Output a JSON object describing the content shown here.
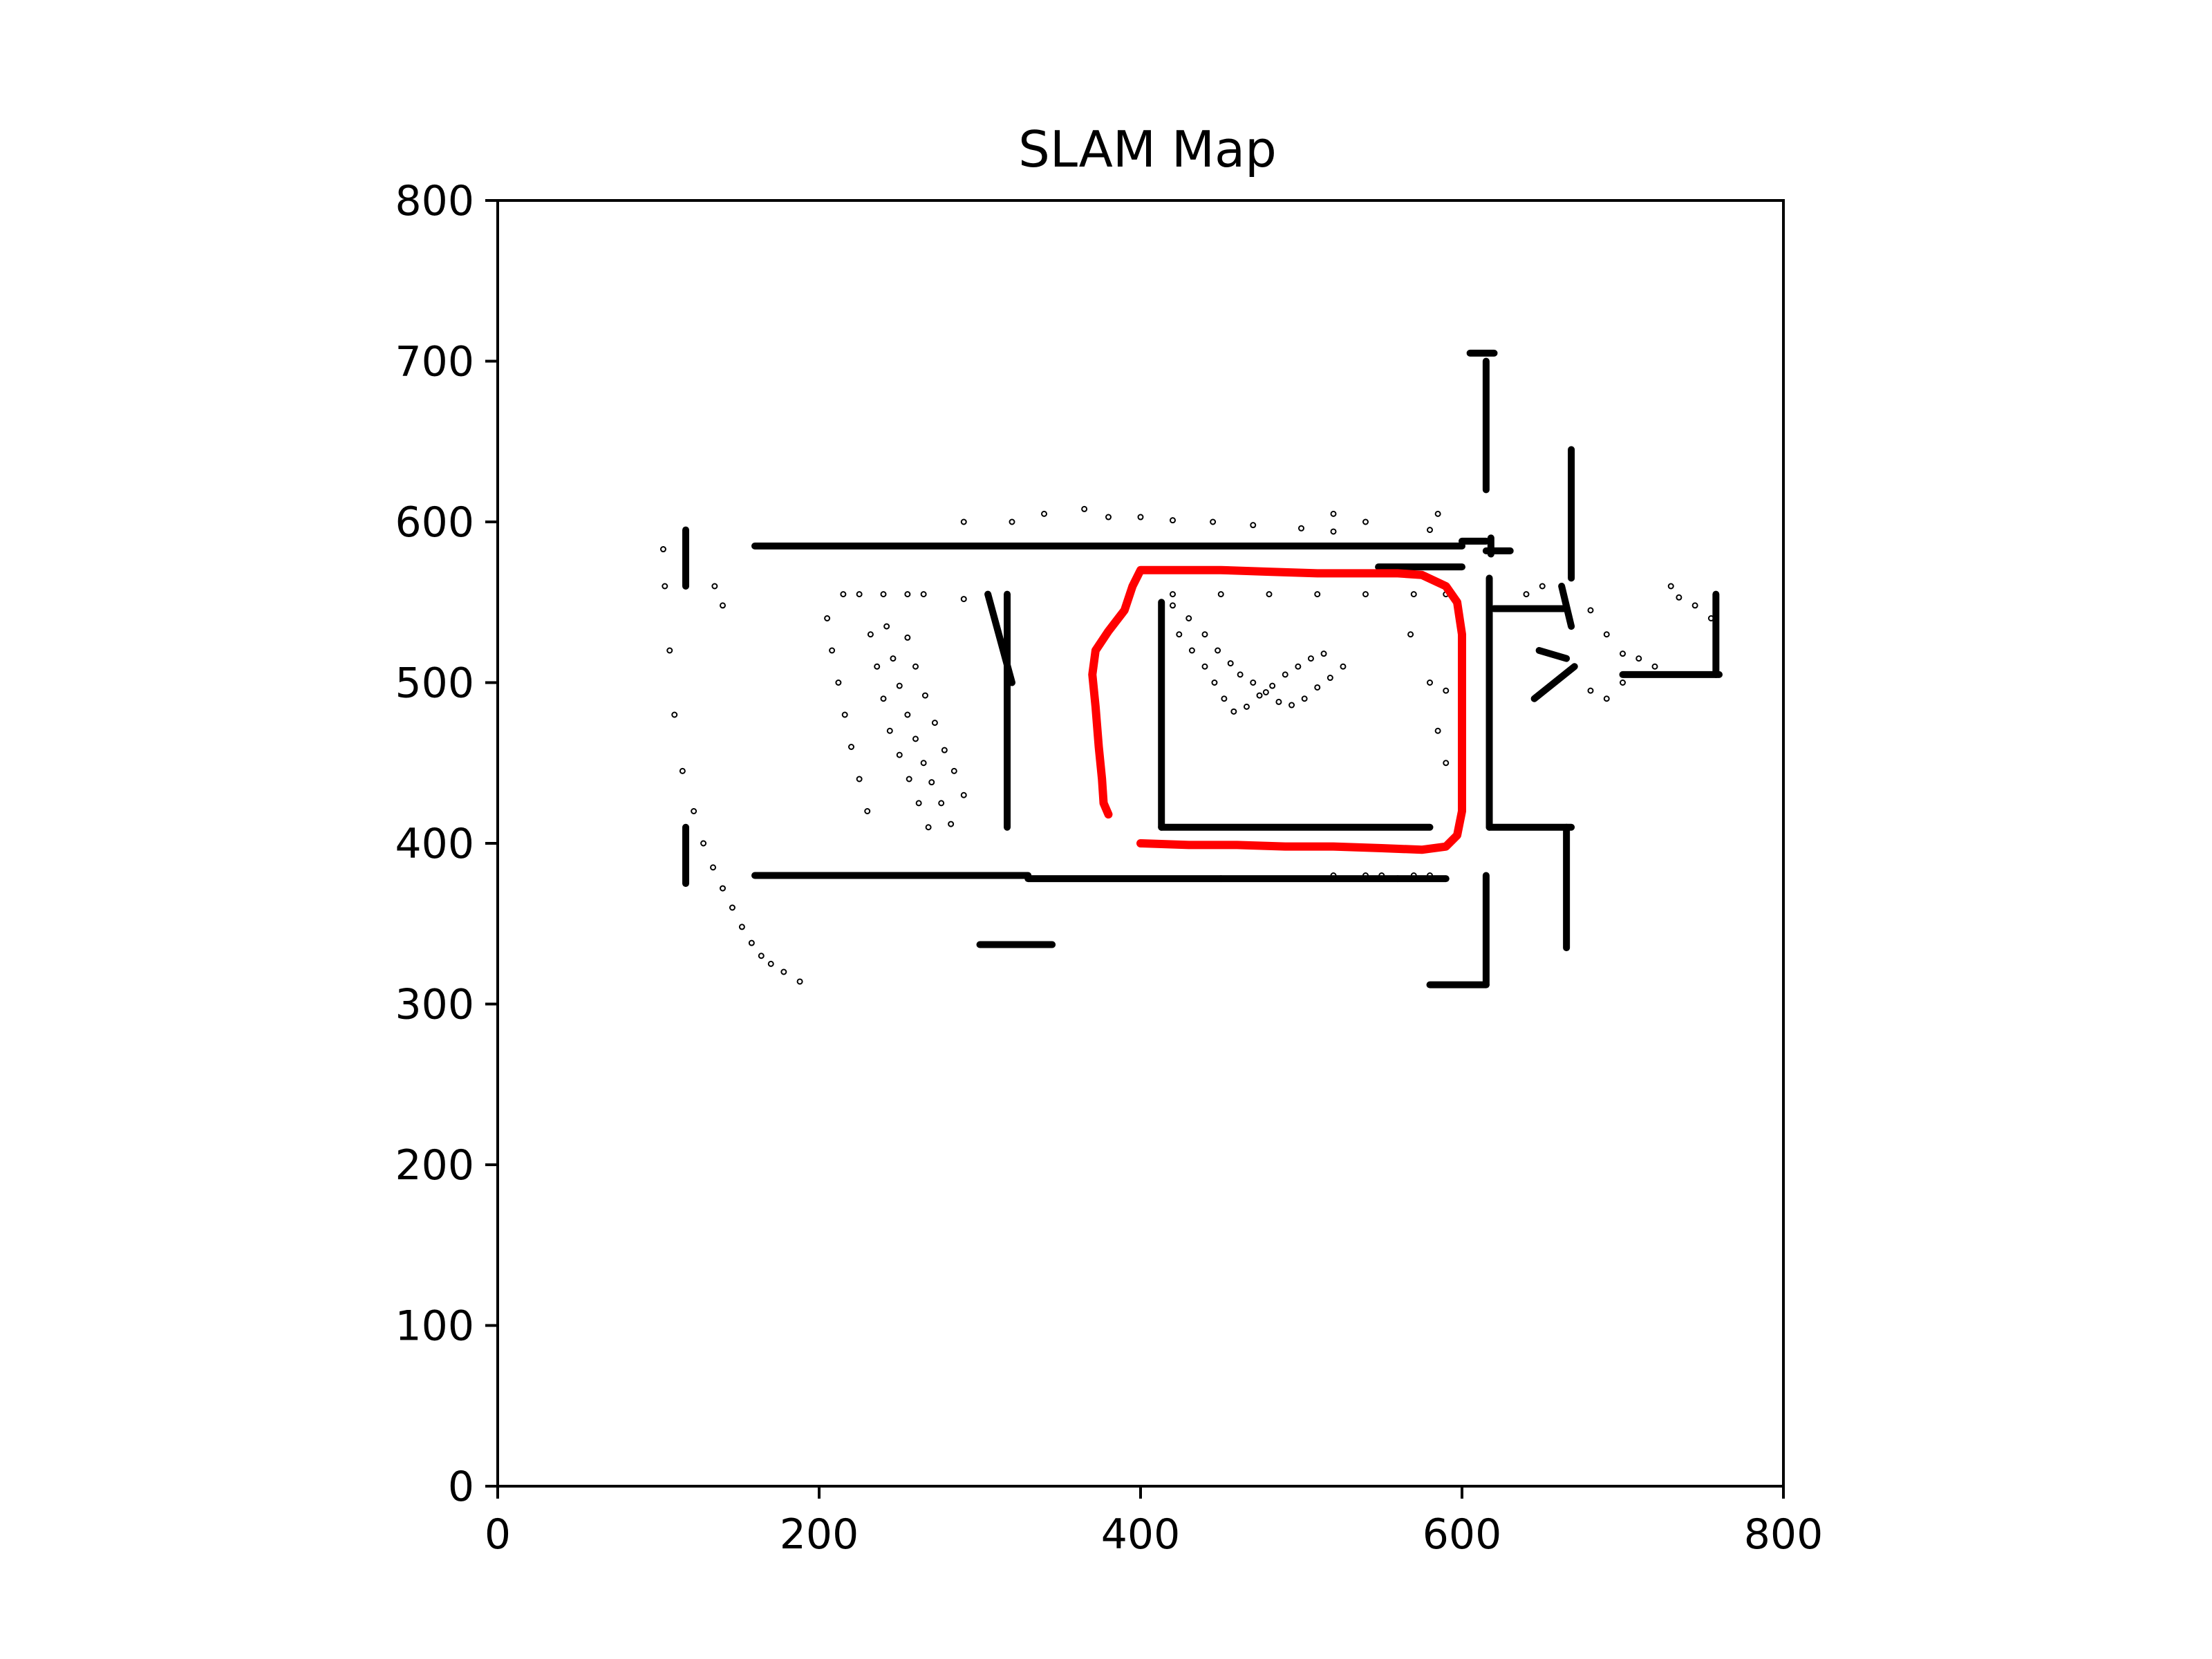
{
  "chart_data": {
    "type": "scatter",
    "title": "SLAM Map",
    "xlabel": "",
    "ylabel": "",
    "xlim": [
      0,
      800
    ],
    "ylim": [
      0,
      800
    ],
    "xticks": [
      "0",
      "200",
      "400",
      "600",
      "800"
    ],
    "yticks": [
      "0",
      "100",
      "200",
      "300",
      "400",
      "500",
      "600",
      "700",
      "800"
    ],
    "grid": false,
    "legend": "none",
    "series": [
      {
        "kind": "map-walls",
        "color": "#000000",
        "segments": [
          [
            [
              160,
              585
            ],
            [
              600,
              585
            ]
          ],
          [
            [
              600,
              588
            ],
            [
              615,
              588
            ]
          ],
          [
            [
              615,
              582
            ],
            [
              630,
              582
            ]
          ],
          [
            [
              160,
              380
            ],
            [
              330,
              380
            ]
          ],
          [
            [
              330,
              378
            ],
            [
              450,
              378
            ]
          ],
          [
            [
              450,
              378
            ],
            [
              560,
              378
            ]
          ],
          [
            [
              560,
              378
            ],
            [
              590,
              378
            ]
          ],
          [
            [
              117,
              595
            ],
            [
              117,
              560
            ]
          ],
          [
            [
              117,
              410
            ],
            [
              117,
              375
            ]
          ],
          [
            [
              305,
              555
            ],
            [
              320,
              500
            ]
          ],
          [
            [
              317,
              555
            ],
            [
              317,
              410
            ]
          ],
          [
            [
              413,
              550
            ],
            [
              413,
              410
            ]
          ],
          [
            [
              413,
              410
            ],
            [
              580,
              410
            ]
          ],
          [
            [
              548,
              572
            ],
            [
              600,
              572
            ]
          ],
          [
            [
              615,
              700
            ],
            [
              615,
              620
            ]
          ],
          [
            [
              618,
              590
            ],
            [
              618,
              580
            ]
          ],
          [
            [
              605,
              705
            ],
            [
              620,
              705
            ]
          ],
          [
            [
              617,
              565
            ],
            [
              617,
              410
            ]
          ],
          [
            [
              617,
              410
            ],
            [
              668,
              410
            ]
          ],
          [
            [
              620,
              546
            ],
            [
              665,
              546
            ]
          ],
          [
            [
              668,
              645
            ],
            [
              668,
              565
            ]
          ],
          [
            [
              665,
              410
            ],
            [
              665,
              335
            ]
          ],
          [
            [
              615,
              380
            ],
            [
              615,
              312
            ]
          ],
          [
            [
              580,
              312
            ],
            [
              615,
              312
            ]
          ],
          [
            [
              300,
              337
            ],
            [
              345,
              337
            ]
          ],
          [
            [
              700,
              505
            ],
            [
              760,
              505
            ]
          ],
          [
            [
              758,
              555
            ],
            [
              758,
              505
            ]
          ],
          [
            [
              648,
              520
            ],
            [
              665,
              515
            ]
          ],
          [
            [
              662,
              560
            ],
            [
              668,
              535
            ]
          ],
          [
            [
              645,
              490
            ],
            [
              670,
              510
            ]
          ]
        ]
      },
      {
        "kind": "map-points",
        "color": "#000000",
        "points": [
          [
            103,
            583
          ],
          [
            104,
            560
          ],
          [
            107,
            520
          ],
          [
            110,
            480
          ],
          [
            115,
            445
          ],
          [
            122,
            420
          ],
          [
            128,
            400
          ],
          [
            134,
            385
          ],
          [
            140,
            372
          ],
          [
            146,
            360
          ],
          [
            152,
            348
          ],
          [
            158,
            338
          ],
          [
            164,
            330
          ],
          [
            170,
            325
          ],
          [
            178,
            320
          ],
          [
            188,
            314
          ],
          [
            135,
            560
          ],
          [
            140,
            548
          ],
          [
            205,
            540
          ],
          [
            208,
            520
          ],
          [
            212,
            500
          ],
          [
            216,
            480
          ],
          [
            220,
            460
          ],
          [
            225,
            440
          ],
          [
            230,
            420
          ],
          [
            232,
            530
          ],
          [
            236,
            510
          ],
          [
            240,
            490
          ],
          [
            244,
            470
          ],
          [
            250,
            455
          ],
          [
            256,
            440
          ],
          [
            262,
            425
          ],
          [
            268,
            410
          ],
          [
            242,
            535
          ],
          [
            246,
            515
          ],
          [
            250,
            498
          ],
          [
            255,
            480
          ],
          [
            260,
            465
          ],
          [
            265,
            450
          ],
          [
            270,
            438
          ],
          [
            276,
            425
          ],
          [
            282,
            412
          ],
          [
            255,
            528
          ],
          [
            260,
            510
          ],
          [
            266,
            492
          ],
          [
            272,
            475
          ],
          [
            278,
            458
          ],
          [
            284,
            445
          ],
          [
            290,
            430
          ],
          [
            215,
            555
          ],
          [
            225,
            555
          ],
          [
            240,
            555
          ],
          [
            255,
            555
          ],
          [
            265,
            555
          ],
          [
            290,
            552
          ],
          [
            420,
            548
          ],
          [
            430,
            540
          ],
          [
            440,
            530
          ],
          [
            448,
            520
          ],
          [
            456,
            512
          ],
          [
            462,
            505
          ],
          [
            470,
            500
          ],
          [
            478,
            494
          ],
          [
            486,
            488
          ],
          [
            494,
            486
          ],
          [
            502,
            490
          ],
          [
            510,
            497
          ],
          [
            518,
            503
          ],
          [
            526,
            510
          ],
          [
            424,
            530
          ],
          [
            432,
            520
          ],
          [
            440,
            510
          ],
          [
            446,
            500
          ],
          [
            452,
            490
          ],
          [
            458,
            482
          ],
          [
            466,
            485
          ],
          [
            474,
            492
          ],
          [
            482,
            498
          ],
          [
            490,
            505
          ],
          [
            498,
            510
          ],
          [
            506,
            515
          ],
          [
            514,
            518
          ],
          [
            420,
            555
          ],
          [
            450,
            555
          ],
          [
            480,
            555
          ],
          [
            510,
            555
          ],
          [
            540,
            555
          ],
          [
            570,
            555
          ],
          [
            590,
            555
          ],
          [
            520,
            605
          ],
          [
            540,
            600
          ],
          [
            580,
            595
          ],
          [
            585,
            605
          ],
          [
            580,
            500
          ],
          [
            590,
            495
          ],
          [
            585,
            470
          ],
          [
            590,
            450
          ],
          [
            568,
            530
          ],
          [
            290,
            600
          ],
          [
            320,
            600
          ],
          [
            340,
            605
          ],
          [
            365,
            608
          ],
          [
            380,
            603
          ],
          [
            400,
            603
          ],
          [
            420,
            601
          ],
          [
            445,
            600
          ],
          [
            470,
            598
          ],
          [
            500,
            596
          ],
          [
            520,
            594
          ],
          [
            640,
            555
          ],
          [
            650,
            560
          ],
          [
            680,
            545
          ],
          [
            690,
            530
          ],
          [
            700,
            518
          ],
          [
            710,
            515
          ],
          [
            720,
            510
          ],
          [
            730,
            560
          ],
          [
            735,
            553
          ],
          [
            745,
            548
          ],
          [
            755,
            540
          ],
          [
            680,
            495
          ],
          [
            690,
            490
          ],
          [
            700,
            500
          ],
          [
            520,
            380
          ],
          [
            540,
            380
          ],
          [
            550,
            380
          ],
          [
            570,
            380
          ],
          [
            580,
            380
          ]
        ]
      },
      {
        "kind": "trajectory",
        "color": "#ff0000",
        "points": [
          [
            400,
            400
          ],
          [
            430,
            399
          ],
          [
            460,
            399
          ],
          [
            490,
            398
          ],
          [
            520,
            398
          ],
          [
            550,
            397
          ],
          [
            575,
            396
          ],
          [
            590,
            398
          ],
          [
            597,
            405
          ],
          [
            600,
            420
          ],
          [
            600,
            450
          ],
          [
            600,
            480
          ],
          [
            600,
            510
          ],
          [
            600,
            530
          ],
          [
            597,
            550
          ],
          [
            590,
            560
          ],
          [
            575,
            567
          ],
          [
            560,
            568
          ],
          [
            540,
            568
          ],
          [
            510,
            568
          ],
          [
            480,
            569
          ],
          [
            450,
            570
          ],
          [
            420,
            570
          ],
          [
            400,
            570
          ],
          [
            395,
            560
          ],
          [
            390,
            545
          ],
          [
            380,
            532
          ],
          [
            372,
            520
          ],
          [
            370,
            505
          ],
          [
            372,
            485
          ],
          [
            374,
            460
          ],
          [
            376,
            440
          ],
          [
            377,
            425
          ],
          [
            380,
            418
          ]
        ]
      }
    ]
  }
}
